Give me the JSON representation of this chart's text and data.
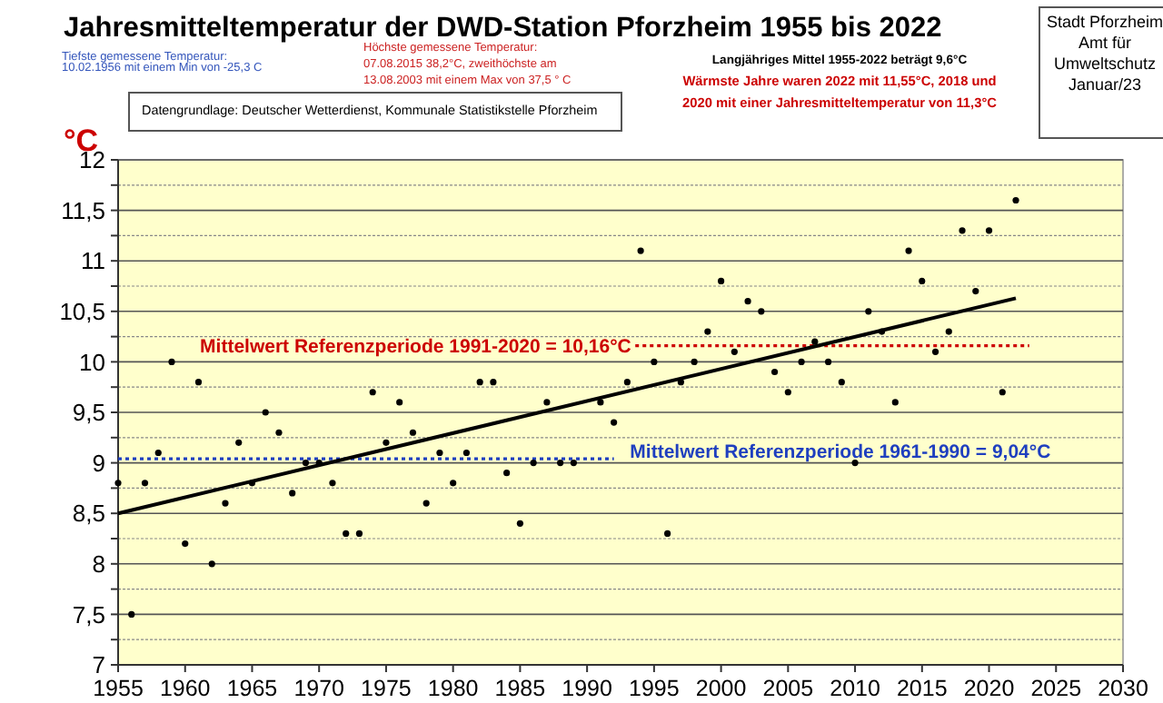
{
  "chart_data": {
    "type": "scatter",
    "title": "Jahresmitteltemperatur der DWD-Station Pforzheim 1955 bis 2022",
    "ylabel": "°C",
    "annotations": [
      "Tiefste gemessene Temperatur:\n10.02.1956 mit einem Min von -25,3  C",
      "Höchste gemessene Temperatur:\n07.08.2015 38,2°C, zweithöchste am\n13.08.2003 mit einem Max von 37,5 ° C",
      "Langjähriges Mittel 1955-2022 beträgt 9,6°C",
      "Wärmste Jahre waren 2022 mit 11,55°C, 2018 und\n2020 mit einer Jahresmitteltemperatur von  11,3°C",
      "Stadt Pforzheim\nAmt für\nUmweltschutz\nJanuar/23",
      "Datengrundlage: Deutscher Wetterdienst, Kommunale Statistikstelle Pforzheim"
    ],
    "x": [
      1955,
      1956,
      1957,
      1958,
      1959,
      1960,
      1961,
      1962,
      1963,
      1964,
      1965,
      1966,
      1967,
      1968,
      1969,
      1970,
      1971,
      1972,
      1973,
      1974,
      1975,
      1976,
      1977,
      1978,
      1979,
      1980,
      1981,
      1982,
      1983,
      1984,
      1985,
      1986,
      1987,
      1988,
      1989,
      1991,
      1992,
      1993,
      1994,
      1995,
      1996,
      1997,
      1998,
      1999,
      2000,
      2001,
      2002,
      2003,
      2004,
      2005,
      2006,
      2007,
      2008,
      2009,
      2010,
      2011,
      2012,
      2013,
      2014,
      2015,
      2016,
      2017,
      2018,
      2019,
      2020,
      2021,
      2022
    ],
    "series": [
      {
        "type": "scatter",
        "color": "#000000",
        "marker": "circle",
        "values": [
          8.8,
          7.5,
          8.8,
          9.1,
          10.0,
          8.2,
          9.8,
          8.0,
          8.6,
          9.2,
          8.8,
          9.5,
          9.3,
          8.7,
          9.0,
          9.0,
          8.8,
          8.3,
          8.3,
          9.7,
          9.2,
          9.6,
          9.3,
          8.6,
          9.1,
          8.8,
          9.1,
          9.8,
          9.8,
          8.9,
          8.4,
          9.0,
          9.6,
          9.0,
          9.0,
          9.6,
          9.4,
          9.8,
          11.1,
          10.0,
          8.3,
          9.8,
          10.0,
          10.3,
          10.8,
          10.1,
          10.6,
          10.5,
          9.9,
          9.7,
          10.0,
          10.2,
          10.0,
          9.8,
          9.0,
          10.5,
          10.3,
          9.6,
          11.1,
          10.8,
          10.1,
          10.3,
          11.3,
          10.7,
          11.3,
          9.7,
          11.6
        ]
      },
      {
        "type": "line",
        "color": "#000000",
        "x": [
          1955,
          2022
        ],
        "values": [
          8.5,
          10.63
        ]
      }
    ],
    "ref_lines": [
      {
        "axis": "y",
        "value": 10.16,
        "label": "Mittelwert Referenzperiode 1991-2020 = 10,16°C",
        "color": "#cc0000",
        "line_style": "dotted"
      },
      {
        "axis": "y",
        "value": 9.04,
        "label": "Mittelwert Referenzperiode 1961-1990 = 9,04°C",
        "color": "#1f3fbf",
        "line_style": "dotted"
      }
    ],
    "xlim": [
      1955,
      2030
    ],
    "xticks": [
      1955,
      1960,
      1965,
      1970,
      1975,
      1980,
      1985,
      1990,
      1995,
      2000,
      2005,
      2010,
      2015,
      2020,
      2025,
      2030
    ],
    "ylim": [
      7,
      12
    ],
    "yticks": [
      {
        "value": 7,
        "label": "7"
      },
      {
        "value": 7.25,
        "label": null
      },
      {
        "value": 7.5,
        "label": "7,5"
      },
      {
        "value": 7.75,
        "label": null
      },
      {
        "value": 8,
        "label": "8"
      },
      {
        "value": 8.25,
        "label": null
      },
      {
        "value": 8.5,
        "label": "8,5"
      },
      {
        "value": 8.75,
        "label": null
      },
      {
        "value": 9,
        "label": "9"
      },
      {
        "value": 9.25,
        "label": null
      },
      {
        "value": 9.5,
        "label": "9,5"
      },
      {
        "value": 9.75,
        "label": null
      },
      {
        "value": 10,
        "label": "10"
      },
      {
        "value": 10.25,
        "label": null
      },
      {
        "value": 10.5,
        "label": "10,5"
      },
      {
        "value": 10.75,
        "label": null
      },
      {
        "value": 11,
        "label": "11"
      },
      {
        "value": 11.25,
        "label": null
      },
      {
        "value": 11.5,
        "label": "11,5"
      },
      {
        "value": 11.75,
        "label": null
      },
      {
        "value": 12,
        "label": "12"
      }
    ],
    "grid": "y"
  }
}
